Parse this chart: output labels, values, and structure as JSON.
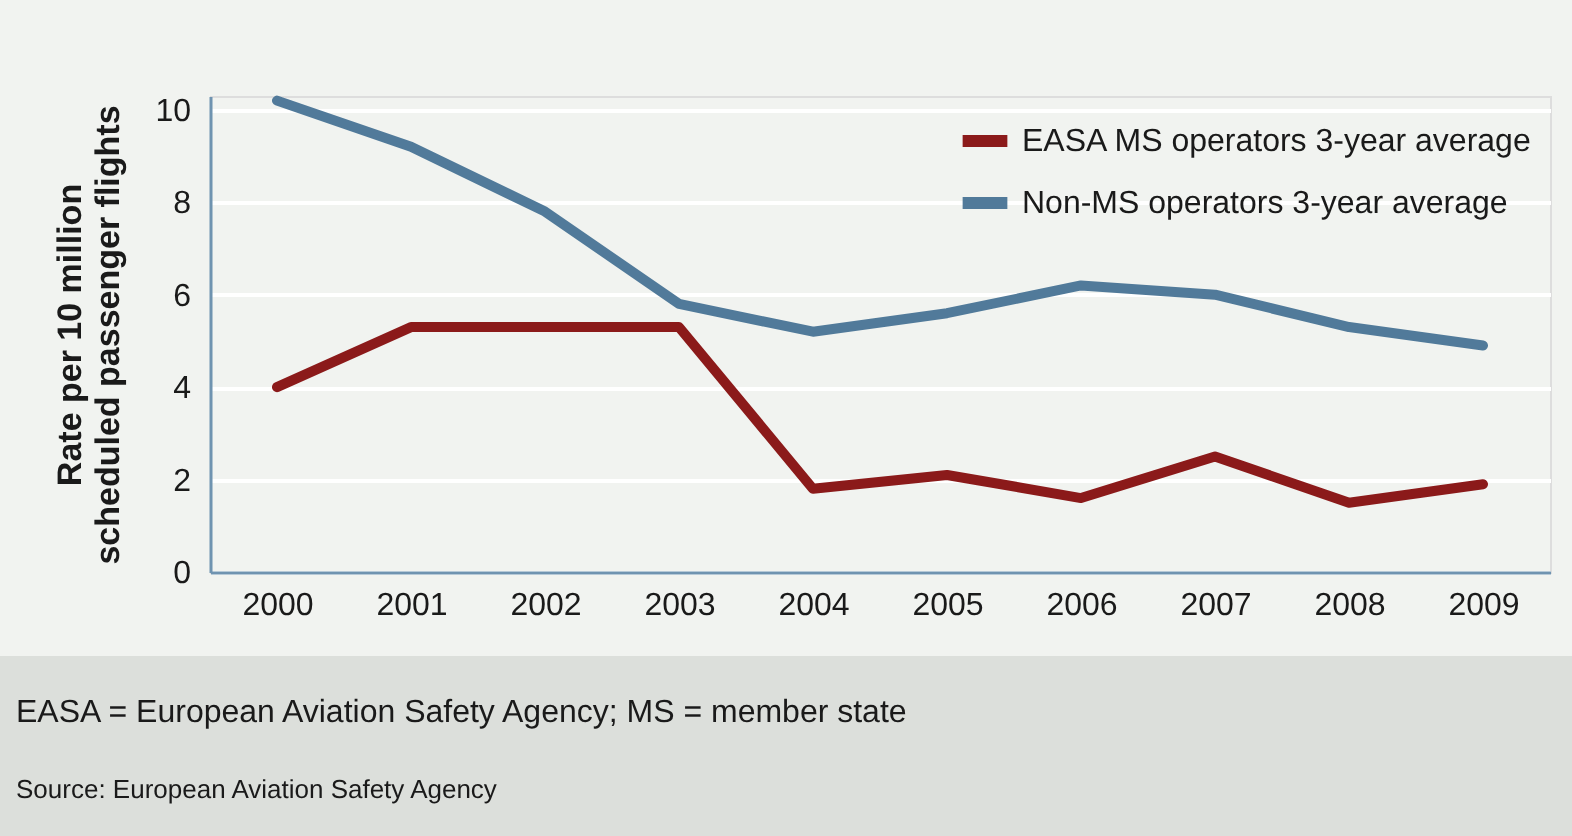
{
  "chart_data": {
    "type": "line",
    "ylabel": "Rate per 10 million\nscheduled passenger flights",
    "categories": [
      "2000",
      "2001",
      "2002",
      "2003",
      "2004",
      "2005",
      "2006",
      "2007",
      "2008",
      "2009"
    ],
    "series": [
      {
        "name": "EASA MS operators 3-year average",
        "color": "#8b1a1a",
        "values": [
          4.0,
          5.3,
          5.3,
          5.3,
          1.8,
          2.1,
          1.6,
          2.5,
          1.5,
          1.9
        ]
      },
      {
        "name": "Non-MS operators 3-year average",
        "color": "#517a9a",
        "values": [
          10.2,
          9.2,
          7.8,
          5.8,
          5.2,
          5.6,
          6.2,
          6.0,
          5.3,
          4.9
        ]
      }
    ],
    "ylim": [
      0,
      10.3
    ],
    "yticks": [
      0,
      2,
      4,
      6,
      8,
      10
    ],
    "grid": "y",
    "legend": "top right",
    "line_style": "solid",
    "marker": "none",
    "annotations": [
      "EASA = European Aviation Safety Agency; MS = member state",
      "Source: European Aviation Safety Agency"
    ]
  }
}
